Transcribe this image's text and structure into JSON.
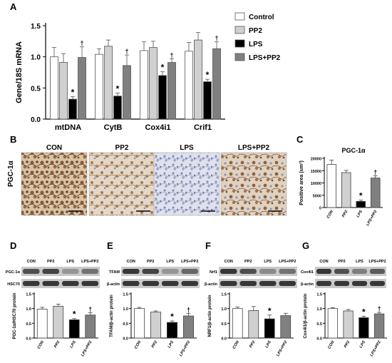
{
  "panels": {
    "A": "A",
    "B": "B",
    "C": "C",
    "D": "D",
    "E": "E",
    "F": "F",
    "G": "G"
  },
  "colors": {
    "control": "#ffffff",
    "pp2": "#d0d0d0",
    "lps": "#000000",
    "lps_pp2": "#808080",
    "tissue_brown": "#8a5a36",
    "tissue_blue": "#8d97c2"
  },
  "micrograph": {
    "row_label": "PGC-1α",
    "labels": [
      "CON",
      "PP2",
      "LPS",
      "LPS+PP2"
    ]
  },
  "western": {
    "D": {
      "lanes": [
        "CON",
        "PP2",
        "LPS",
        "LPS+PP2"
      ],
      "bands": [
        "PGC-1α",
        "HSC70"
      ]
    },
    "E": {
      "lanes": [
        "CON",
        "PP2",
        "LPS",
        "LPS+PP2"
      ],
      "bands": [
        "TFAM",
        "β-actin"
      ]
    },
    "F": {
      "lanes": [
        "CON",
        "PP2",
        "LPS",
        "LPS+PP2"
      ],
      "bands": [
        "Nrf1",
        "β-actin"
      ]
    },
    "G": {
      "lanes": [
        "CON",
        "PP2",
        "LPS",
        "LPS+PP2"
      ],
      "bands": [
        "Cox4i1",
        "β-actin"
      ]
    }
  },
  "chart_data": [
    {
      "id": "A",
      "type": "bar",
      "categories": [
        "mtDNA",
        "CytB",
        "Cox4i1",
        "Crif1"
      ],
      "series": [
        {
          "name": "Control",
          "values": [
            1.0,
            1.04,
            1.1,
            1.09
          ],
          "errors": [
            0.15,
            0.09,
            0.14,
            0.14
          ]
        },
        {
          "name": "PP2",
          "values": [
            0.91,
            1.17,
            1.15,
            1.27
          ],
          "errors": [
            0.14,
            0.1,
            0.1,
            0.12
          ]
        },
        {
          "name": "LPS",
          "values": [
            0.32,
            0.37,
            0.7,
            0.6
          ],
          "errors": [
            0.04,
            0.05,
            0.06,
            0.04
          ]
        },
        {
          "name": "LPS+PP2",
          "values": [
            0.99,
            0.86,
            0.91,
            1.13
          ],
          "errors": [
            0.17,
            0.17,
            0.06,
            0.11
          ]
        }
      ],
      "annotations": [
        [
          "",
          "",
          "*",
          "†"
        ],
        [
          "",
          "",
          "*",
          "†"
        ],
        [
          "",
          "",
          "*",
          "†"
        ],
        [
          "",
          "",
          "*",
          "†"
        ]
      ],
      "ylabel": "Gene/18S mRNA",
      "xlabel": "",
      "yticks": [
        "0.0",
        "0.5",
        "1.0",
        "1.5"
      ],
      "ylim": [
        0,
        1.5
      ],
      "legend": "right"
    },
    {
      "id": "C",
      "type": "bar",
      "title": "PGC-1α",
      "categories": [
        "CON",
        "PP2",
        "LPS",
        "LPS+PP2"
      ],
      "values": [
        17500,
        14200,
        2500,
        12000
      ],
      "errors": [
        1800,
        900,
        500,
        900
      ],
      "annotations": [
        "",
        "",
        "*",
        "†"
      ],
      "ylabel": "Positive area (um²)",
      "yticks": [
        "0",
        "5000",
        "10000",
        "15000",
        "20000"
      ],
      "ylim": [
        0,
        20000
      ]
    },
    {
      "id": "D",
      "type": "bar",
      "categories": [
        "CON",
        "PP2",
        "LPS",
        "LPS+PP2"
      ],
      "values": [
        0.98,
        1.08,
        0.62,
        0.78
      ],
      "errors": [
        0.06,
        0.07,
        0.04,
        0.08
      ],
      "annotations": [
        "",
        "",
        "*",
        "†"
      ],
      "ylabel": "PGC-1α/HSC70 protein",
      "yticks": [
        "0.0",
        "0.5",
        "1.0",
        "1.5"
      ],
      "ylim": [
        0,
        1.5
      ]
    },
    {
      "id": "E",
      "type": "bar",
      "categories": [
        "CON",
        "PP2",
        "LPS",
        "LPS+PP2"
      ],
      "values": [
        1.0,
        0.88,
        0.53,
        0.75
      ],
      "errors": [
        0.04,
        0.04,
        0.05,
        0.09
      ],
      "annotations": [
        "",
        "",
        "*",
        "†"
      ],
      "ylabel": "TFAM/β-actin protein",
      "yticks": [
        "0.0",
        "0.5",
        "1.0",
        "1.5"
      ],
      "ylim": [
        0,
        1.5
      ]
    },
    {
      "id": "F",
      "type": "bar",
      "categories": [
        "CON",
        "PP2",
        "LPS",
        "LPS+PP2"
      ],
      "values": [
        1.0,
        0.93,
        0.65,
        0.76
      ],
      "errors": [
        0.05,
        0.14,
        0.13,
        0.08
      ],
      "annotations": [
        "",
        "",
        "*",
        ""
      ],
      "ylabel": "NRF1/β-actin protein",
      "yticks": [
        "0.0",
        "0.5",
        "1.0",
        "1.5"
      ],
      "ylim": [
        0,
        1.5
      ]
    },
    {
      "id": "G",
      "type": "bar",
      "categories": [
        "CON",
        "PP2",
        "LPS",
        "LPS+PP2"
      ],
      "values": [
        1.0,
        0.92,
        0.69,
        0.82
      ],
      "errors": [
        0.03,
        0.05,
        0.05,
        0.05
      ],
      "annotations": [
        "",
        "",
        "*",
        "†"
      ],
      "ylabel": "Cox4i1/β-actin protein",
      "yticks": [
        "0.0",
        "0.5",
        "1.0",
        "1.5"
      ],
      "ylim": [
        0,
        1.5
      ]
    }
  ]
}
